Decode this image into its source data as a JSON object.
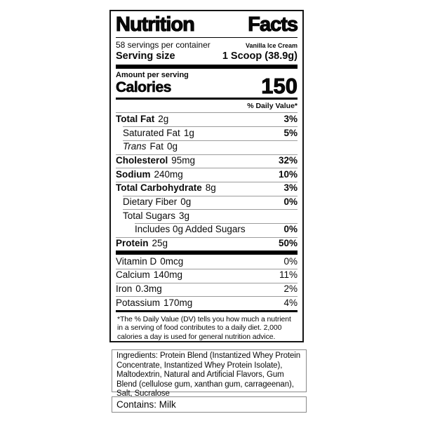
{
  "nf": {
    "title_left": "Nutrition",
    "title_right": "Facts",
    "servings_per_container": "58 servings per container",
    "product_name": "Vanilla Ice Cream",
    "serving_size_label": "Serving size",
    "serving_size_value": "1 Scoop (38.9g)",
    "amount_per_serving": "Amount per serving",
    "calories_label": "Calories",
    "calories_value": "150",
    "daily_value_header": "% Daily Value*",
    "rows": [
      {
        "name": "Total Fat",
        "amount": "2g",
        "dv": "3%"
      },
      {
        "name": "Saturated Fat",
        "amount": "1g",
        "dv": "5%"
      },
      {
        "name": "Trans",
        "rest": "Fat",
        "amount": "0g",
        "dv": ""
      },
      {
        "name": "Cholesterol",
        "amount": "95mg",
        "dv": "32%"
      },
      {
        "name": "Sodium",
        "amount": "240mg",
        "dv": "10%"
      },
      {
        "name": "Total Carbohydrate",
        "amount": "8g",
        "dv": "3%"
      },
      {
        "name": "Dietary Fiber",
        "amount": "0g",
        "dv": "0%"
      },
      {
        "name": "Total Sugars",
        "amount": "3g",
        "dv": ""
      },
      {
        "name": "Includes 0g Added Sugars",
        "amount": "",
        "dv": "0%"
      },
      {
        "name": "Protein",
        "amount": "25g",
        "dv": "50%"
      }
    ],
    "vitamins": [
      {
        "name": "Vitamin D",
        "amount": "0mcg",
        "dv": "0%"
      },
      {
        "name": "Calcium",
        "amount": "140mg",
        "dv": "11%"
      },
      {
        "name": "Iron",
        "amount": "0.3mg",
        "dv": "2%"
      },
      {
        "name": "Potassium",
        "amount": "170mg",
        "dv": "4%"
      }
    ],
    "footnote": "*The % Daily Value (DV) tells you how much a nutrient in a serving of food contributes to a daily diet. 2,000 calories a day is used for general nutrition advice."
  },
  "ingredients": {
    "text": "Ingredients: Protein Blend (Instantized Whey Protein Concentrate, Instantized Whey Protein Isolate), Maltodextrin, Natural and Artificial Flavors, Gum Blend (cellulose gum, xanthan gum, carrageenan), Salt, Sucralose"
  },
  "contains": {
    "text": "Contains: Milk"
  }
}
